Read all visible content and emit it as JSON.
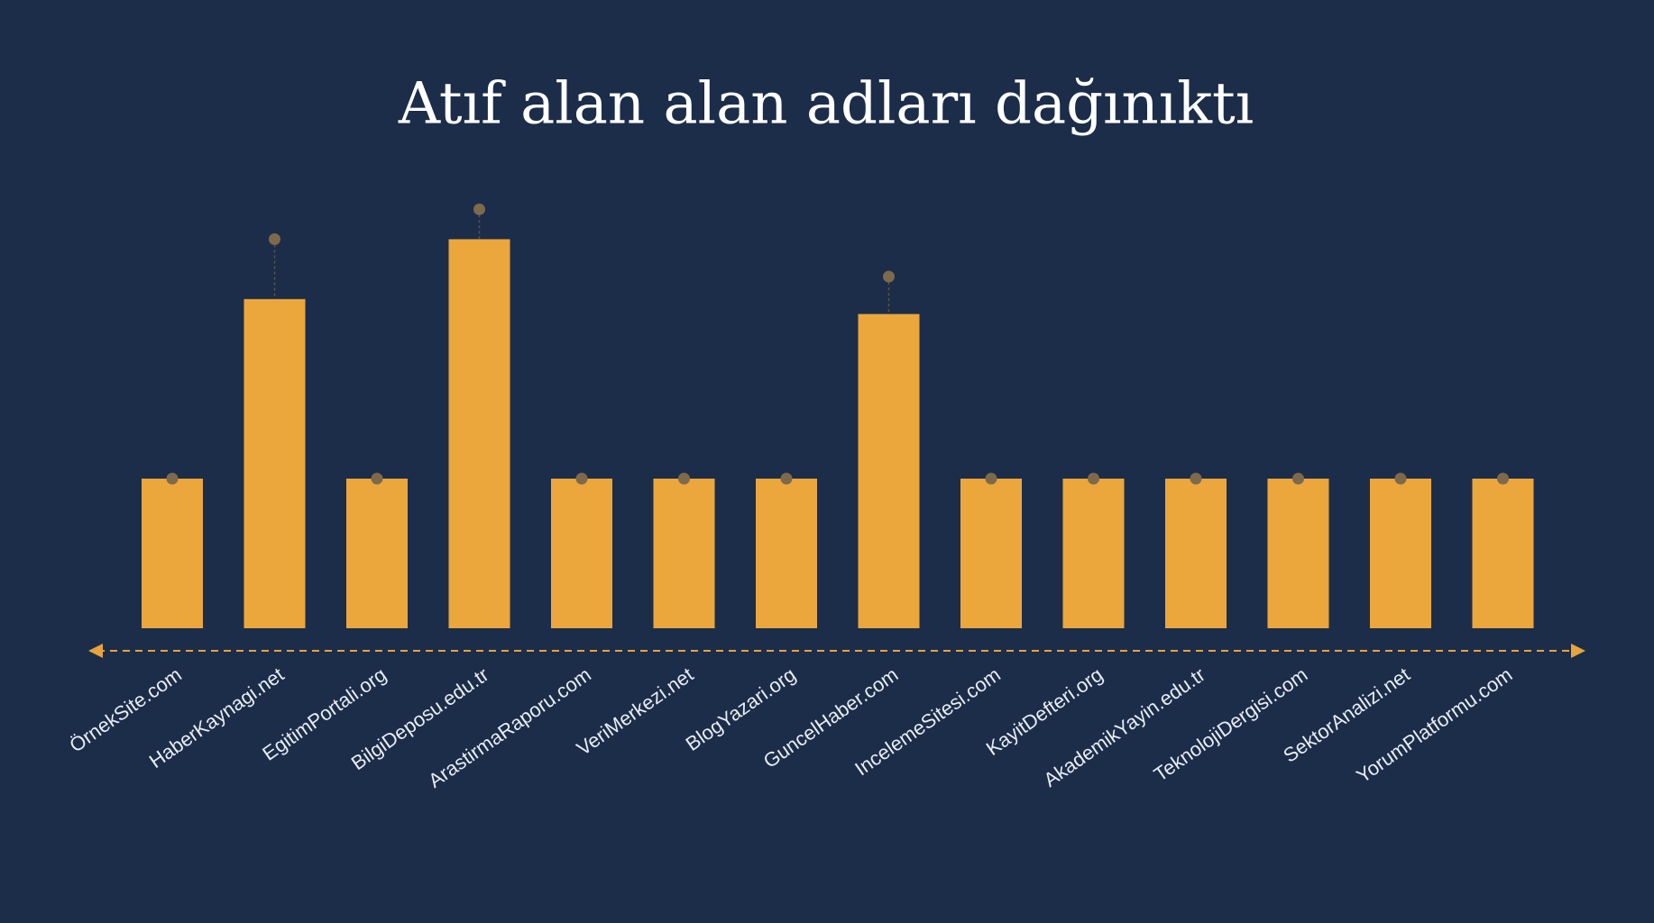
{
  "chart_data": {
    "type": "bar",
    "title": "Atıf alan alan adları dağınıktı",
    "categories": [
      "ÖrnekSite.com",
      "HaberKaynagi.net",
      "EgitimPortali.org",
      "BilgiDeposu.edu.tr",
      "ArastirmaRaporu.com",
      "VeriMerkezi.net",
      "BlogYazari.org",
      "GuncelHaber.com",
      "IncelemeSitesi.com",
      "KayitDefteri.org",
      "AkademikYayin.edu.tr",
      "TeknolojiDergisi.com",
      "SektorAnalizi.net",
      "YorumPlatformu.com"
    ],
    "values": [
      1,
      2.2,
      1,
      2.6,
      1,
      1,
      1,
      2.1,
      1,
      1,
      1,
      1,
      1,
      1
    ],
    "dot_values": [
      1,
      2.6,
      1,
      2.8,
      1,
      1,
      1,
      2.35,
      1,
      1,
      1,
      1,
      1,
      1
    ],
    "color": "#eba63c",
    "dot_color": "#7d6a4c",
    "ylim": [
      0,
      3
    ]
  }
}
